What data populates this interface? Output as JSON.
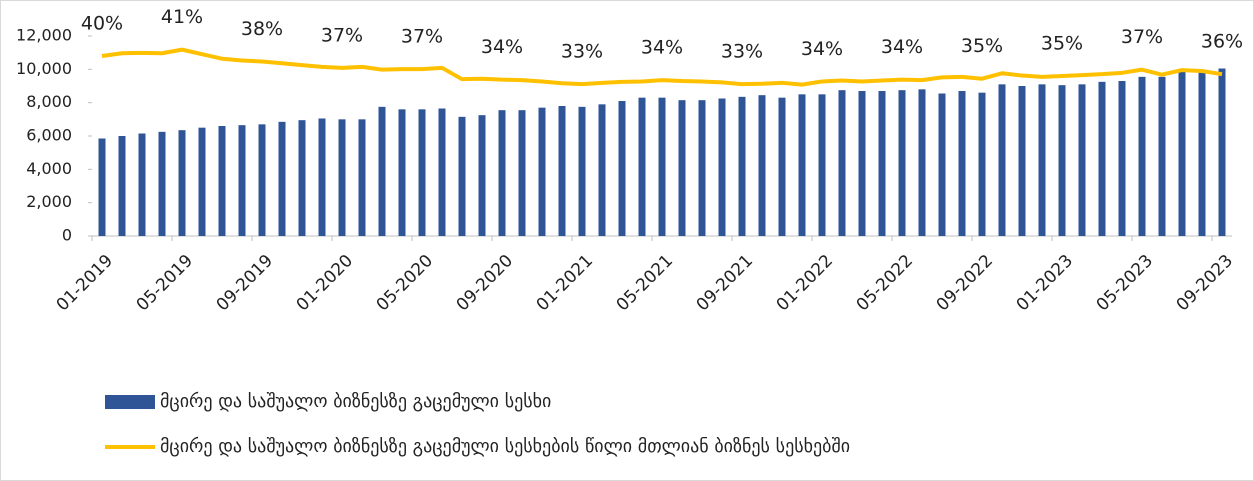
{
  "chart_data": {
    "type": "bar_line",
    "categories": [
      "01-2019",
      null,
      null,
      null,
      "05-2019",
      null,
      null,
      null,
      "09-2019",
      null,
      null,
      null,
      "01-2020",
      null,
      null,
      null,
      "05-2020",
      null,
      null,
      null,
      "09-2020",
      null,
      null,
      null,
      "01-2021",
      null,
      null,
      null,
      "05-2021",
      null,
      null,
      null,
      "09-2021",
      null,
      null,
      null,
      "01-2022",
      null,
      null,
      null,
      "05-2022",
      null,
      null,
      null,
      "09-2022",
      null,
      null,
      null,
      "01-2023",
      null,
      null,
      null,
      "05-2023",
      null,
      null,
      null,
      "09-2023"
    ],
    "series": [
      {
        "name": "მცირე და საშუალო ბიზნესზე გაცემული სესხი",
        "color": "#2f5597",
        "kind": "bar",
        "values": [
          5850,
          6000,
          6150,
          6250,
          6350,
          6500,
          6600,
          6650,
          6700,
          6850,
          6950,
          7050,
          7000,
          7000,
          7750,
          7600,
          7600,
          7650,
          7150,
          7250,
          7550,
          7550,
          7700,
          7800,
          7750,
          7900,
          8100,
          8300,
          8300,
          8150,
          8150,
          8250,
          8350,
          8450,
          8300,
          8500,
          8500,
          8750,
          8700,
          8700,
          8750,
          8800,
          8550,
          8700,
          8600,
          9100,
          9000,
          9100,
          9050,
          9100,
          9250,
          9300,
          9550,
          9550,
          10000,
          9900,
          10050
        ]
      },
      {
        "name": "მცირე და საშუალო ბიზნესზე გაცემული სესხების წილი მთლიან ბიზნეს სესხებში",
        "color": "#ffc000",
        "kind": "line",
        "axis": "y2",
        "values": [
          39.6,
          40.2,
          40.3,
          40.2,
          41.0,
          40.0,
          39.0,
          38.6,
          38.4,
          38.0,
          37.6,
          37.2,
          37.0,
          37.2,
          36.6,
          36.7,
          36.7,
          37.0,
          34.5,
          34.6,
          34.4,
          34.3,
          34.0,
          33.6,
          33.4,
          33.7,
          33.9,
          34.0,
          34.3,
          34.1,
          34.0,
          33.8,
          33.4,
          33.5,
          33.7,
          33.3,
          34.0,
          34.2,
          34.0,
          34.2,
          34.4,
          34.3,
          34.9,
          35.0,
          34.6,
          35.8,
          35.3,
          35.0,
          35.2,
          35.4,
          35.6,
          35.9,
          36.6,
          35.5,
          36.5,
          36.3,
          35.6
        ],
        "value_labels": [
          "40%",
          null,
          null,
          null,
          "41%",
          null,
          null,
          null,
          "38%",
          null,
          null,
          null,
          "37%",
          null,
          null,
          null,
          "37%",
          null,
          null,
          null,
          "34%",
          null,
          null,
          null,
          "33%",
          null,
          null,
          null,
          "34%",
          null,
          null,
          null,
          "33%",
          null,
          null,
          null,
          "34%",
          null,
          null,
          null,
          "34%",
          null,
          null,
          null,
          "35%",
          null,
          null,
          null,
          "35%",
          null,
          null,
          null,
          "37%",
          null,
          null,
          null,
          "36%"
        ]
      }
    ],
    "ylim": [
      0,
      12000
    ],
    "yticks": [
      0,
      {
        "value": 2000,
        "label": "2,000"
      },
      {
        "value": 4000,
        "label": "4,000"
      },
      {
        "value": 6000,
        "label": "6,000"
      },
      {
        "value": 8000,
        "label": "8,000"
      },
      {
        "value": 10000,
        "label": "10,000"
      },
      {
        "value": 12000,
        "label": "12,000"
      }
    ],
    "y2lim": [
      0,
      44
    ]
  }
}
